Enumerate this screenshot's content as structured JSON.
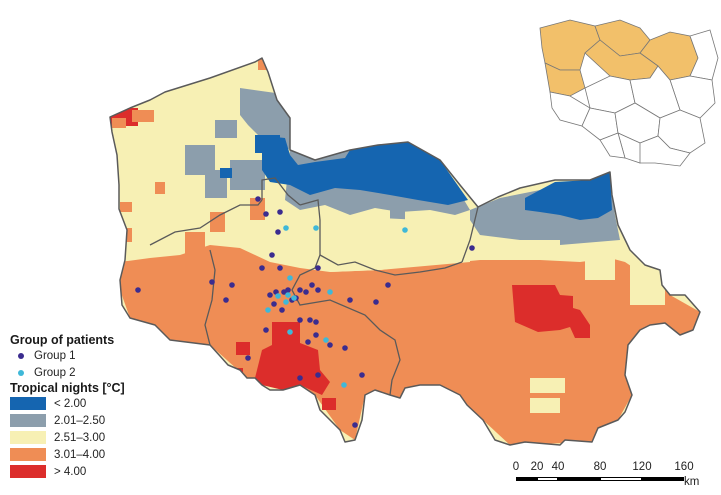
{
  "legend": {
    "patients_title": "Group of patients",
    "groups": [
      {
        "label": "Group 1",
        "color": "#3b2c8f"
      },
      {
        "label": "Group 2",
        "color": "#3fb8d8"
      }
    ],
    "nights_title": "Tropical nights [°C]",
    "classes": [
      {
        "label": "< 2.00",
        "color": "#1565b0"
      },
      {
        "label": "2.01–2.50",
        "color": "#8c9eac"
      },
      {
        "label": "2.51–3.00",
        "color": "#f7f0b4"
      },
      {
        "label": "3.01–4.00",
        "color": "#ef8d55"
      },
      {
        "label": "> 4.00",
        "color": "#dc2d2b"
      }
    ]
  },
  "scale_bar": {
    "ticks": [
      "0",
      "20",
      "40",
      "80",
      "120",
      "160"
    ],
    "unit": "km"
  },
  "colors": {
    "border": "#5a5a5a",
    "inset_highlight": "#f2c06a",
    "inset_outline": "#777777"
  }
}
